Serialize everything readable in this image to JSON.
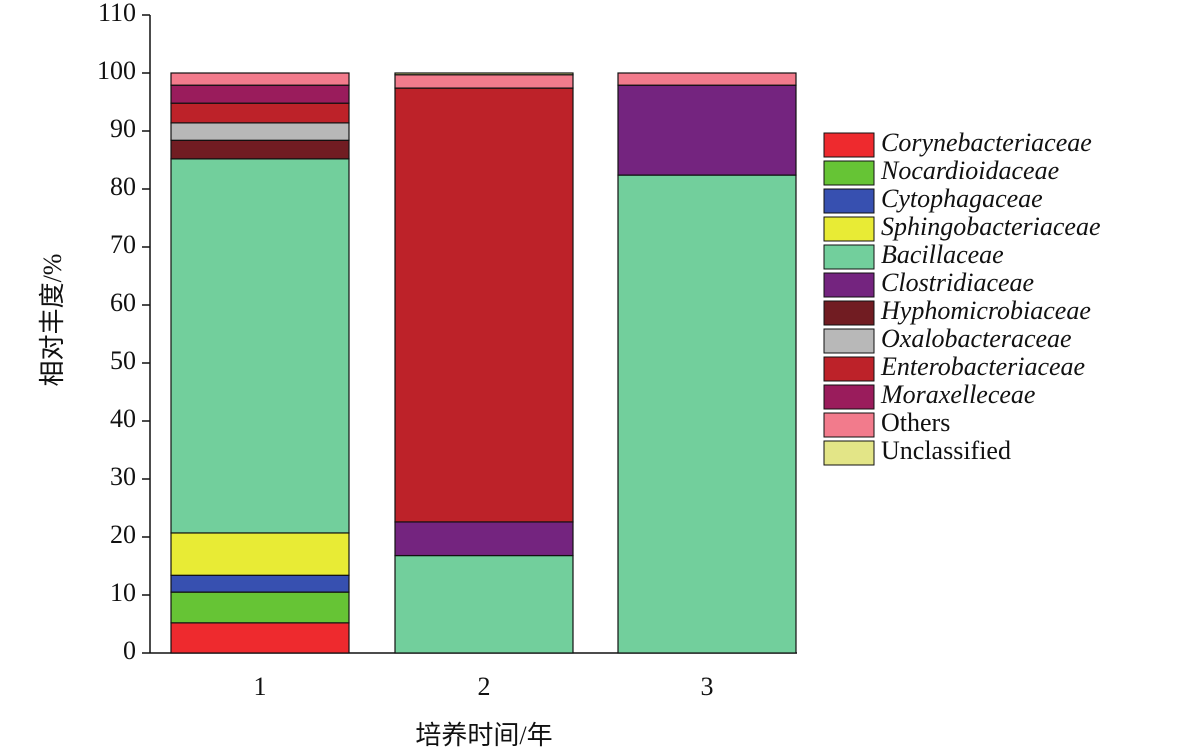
{
  "chart_data": {
    "type": "stacked_bar",
    "y_label": "相对丰度/%",
    "x_label": "培养时间/年",
    "categories": [
      "1",
      "2",
      "3"
    ],
    "ylim": [
      0,
      110
    ],
    "yticks": [
      0,
      10,
      20,
      30,
      40,
      50,
      60,
      70,
      80,
      90,
      100,
      110
    ],
    "series": [
      {
        "name": "Corynebacteriaceae",
        "color": "#ee2a2e",
        "italic": true,
        "values": [
          5.2,
          0,
          0
        ]
      },
      {
        "name": "Nocardioidaceae",
        "color": "#66c435",
        "italic": true,
        "values": [
          5.3,
          0,
          0
        ]
      },
      {
        "name": "Cytophagaceae",
        "color": "#3750b0",
        "italic": true,
        "values": [
          2.9,
          0,
          0
        ]
      },
      {
        "name": "Sphingobacteriaceae",
        "color": "#e8eb35",
        "italic": true,
        "values": [
          7.3,
          0,
          0
        ]
      },
      {
        "name": "Bacillaceae",
        "color": "#72cf9c",
        "italic": true,
        "values": [
          64.5,
          16.8,
          82.4
        ]
      },
      {
        "name": "Clostridiaceae",
        "color": "#74247f",
        "italic": true,
        "values": [
          0,
          5.8,
          15.5
        ]
      },
      {
        "name": "Hyphomicrobiaceae",
        "color": "#711c22",
        "italic": true,
        "values": [
          3.2,
          0,
          0
        ]
      },
      {
        "name": "Oxalobacteraceae",
        "color": "#b8b8b8",
        "italic": true,
        "values": [
          3.0,
          0,
          0
        ]
      },
      {
        "name": "Enterobacteriaceae",
        "color": "#bd2229",
        "italic": true,
        "values": [
          3.4,
          74.8,
          0
        ]
      },
      {
        "name": "Moraxelleceae",
        "color": "#9a1c5c",
        "italic": true,
        "values": [
          3.1,
          0,
          0
        ]
      },
      {
        "name": "Others",
        "color": "#f27b8c",
        "italic": false,
        "values": [
          2.1,
          2.3,
          2.1
        ]
      },
      {
        "name": "Unclassified",
        "color": "#e3e587",
        "italic": false,
        "values": [
          0,
          0.3,
          0
        ]
      }
    ]
  }
}
